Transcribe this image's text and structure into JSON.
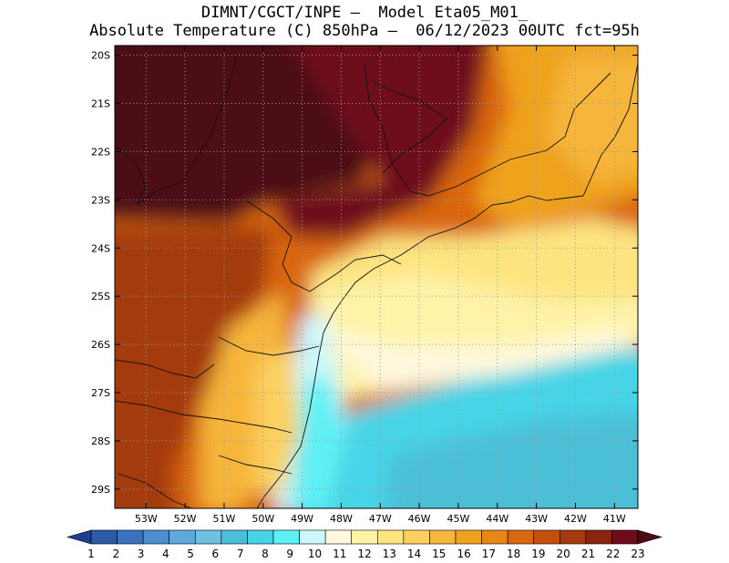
{
  "title": {
    "line1": "DIMNT/CGCT/INPE –  Model Eta05_M01_",
    "line2": "Absolute Temperature (C) 850hPa –  06/12/2023 00UTC fct=95h"
  },
  "map": {
    "lon_labels": [
      "53W",
      "52W",
      "51W",
      "50W",
      "49W",
      "48W",
      "47W",
      "46W",
      "45W",
      "44W",
      "43W",
      "42W",
      "41W"
    ],
    "lat_labels": [
      "20S",
      "21S",
      "22S",
      "23S",
      "24S",
      "25S",
      "26S",
      "27S",
      "28S",
      "29S"
    ],
    "lon_range": [
      -53.8,
      -40.4
    ],
    "lat_range": [
      -29.4,
      -19.8
    ],
    "grid": "dotted"
  },
  "colorbar": {
    "labels": [
      "1",
      "2",
      "3",
      "4",
      "5",
      "6",
      "7",
      "8",
      "9",
      "10",
      "11",
      "12",
      "13",
      "14",
      "15",
      "16",
      "17",
      "18",
      "19",
      "20",
      "21",
      "22",
      "23"
    ],
    "colors": [
      "#1c3f8f",
      "#2b5aa8",
      "#3a73bd",
      "#4b8fd0",
      "#5ea9da",
      "#6ec1e3",
      "#4bbfd6",
      "#47d4e6",
      "#5ef0f5",
      "#cdf7fb",
      "#fff8dd",
      "#fff3a8",
      "#fde480",
      "#fbd05e",
      "#f6b53b",
      "#efa21c",
      "#e88617",
      "#d96611",
      "#c4500e",
      "#a43b0f",
      "#8a2310",
      "#6e0c1a",
      "#4b0c16"
    ]
  }
}
